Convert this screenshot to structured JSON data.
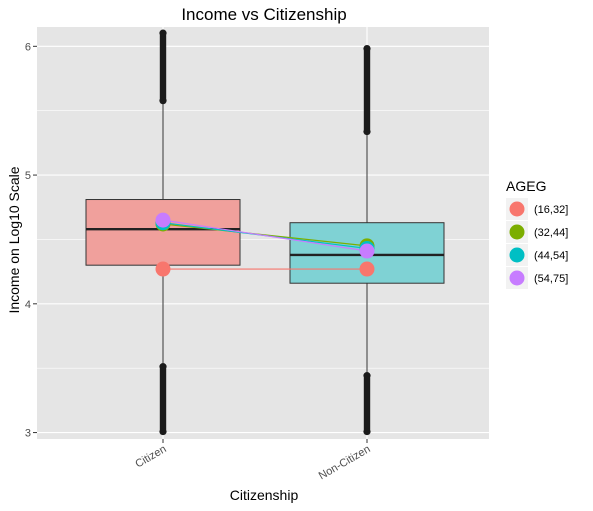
{
  "chart_data": {
    "type": "boxplot",
    "title": "Income vs Citizenship",
    "xlabel": "Citizenship",
    "ylabel": "Income on Log10 Scale",
    "categories": [
      "Citizen",
      "Non-Citizen"
    ],
    "ylim": [
      2.95,
      6.15
    ],
    "yticks": [
      3,
      4,
      5,
      6
    ],
    "grid": true,
    "background": "#e5e5e5",
    "grid_color": "#ffffff",
    "boxes": [
      {
        "category": "Citizen",
        "fill": "#f0a09c",
        "q1": 4.3,
        "median": 4.58,
        "q3": 4.81,
        "whisker_low": 3.54,
        "whisker_high": 5.57,
        "outliers_low": [
          3.0,
          3.52
        ],
        "outliers_high": [
          5.57,
          6.11
        ]
      },
      {
        "category": "Non-Citizen",
        "fill": "#7fd2d4",
        "q1": 4.16,
        "median": 4.38,
        "q3": 4.63,
        "whisker_low": 3.45,
        "whisker_high": 5.33,
        "outliers_low": [
          3.0,
          3.45
        ],
        "outliers_high": [
          5.33,
          5.99
        ]
      }
    ],
    "legend": {
      "title": "AGEG",
      "position": "right"
    },
    "series": [
      {
        "name": "(16,32]",
        "color": "#f8766d",
        "values": [
          4.27,
          4.27
        ]
      },
      {
        "name": "(32,44]",
        "color": "#7cae00",
        "values": [
          4.62,
          4.45
        ]
      },
      {
        "name": "(44,54]",
        "color": "#00bfc4",
        "values": [
          4.63,
          4.43
        ]
      },
      {
        "name": "(54,75]",
        "color": "#c77cff",
        "values": [
          4.65,
          4.41
        ]
      }
    ]
  }
}
